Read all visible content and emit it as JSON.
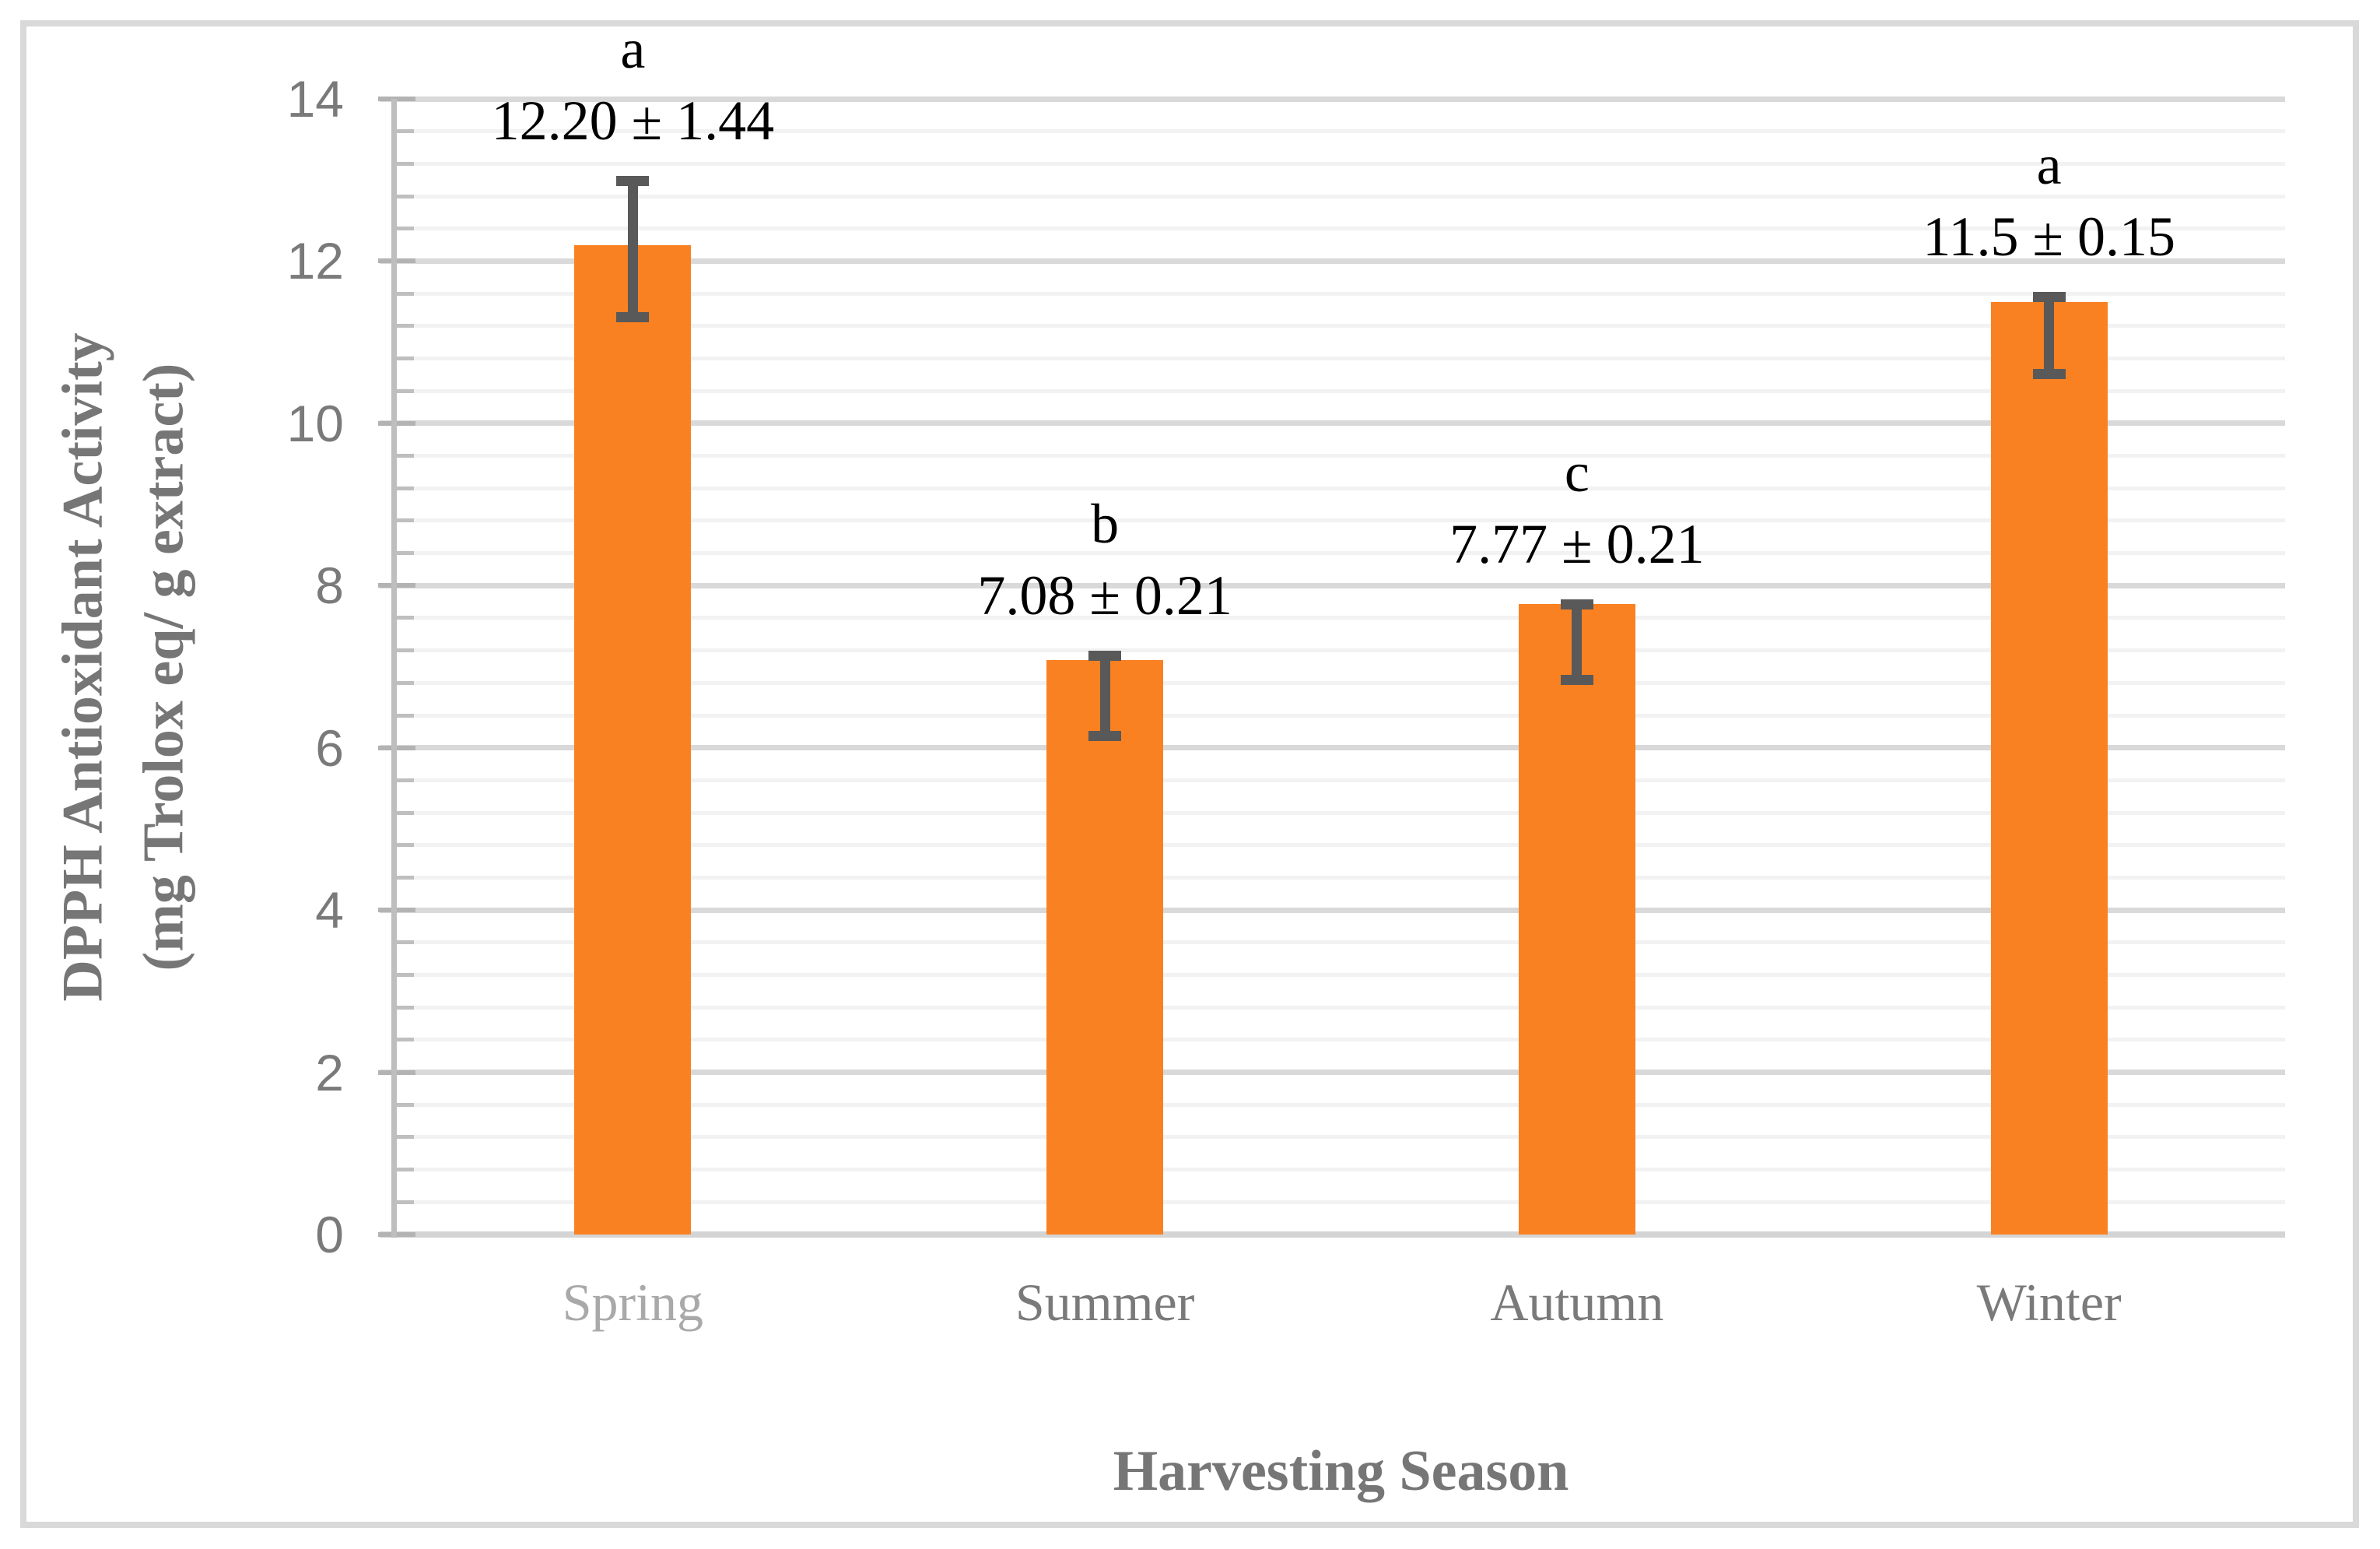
{
  "chart_data": {
    "type": "bar",
    "categories": [
      "Spring",
      "Summer",
      "Autumn",
      "Winter"
    ],
    "values": [
      12.2,
      7.08,
      7.77,
      11.5
    ],
    "value_labels": [
      "12.20 ± 1.44",
      "7.08 ± 0.21",
      "7.77 ± 0.21",
      "11.5 ± 0.15"
    ],
    "sig_letters": [
      "a",
      "b",
      "c",
      "a"
    ],
    "errors": [
      1.44,
      0.21,
      0.21,
      0.15
    ],
    "error_bars_drawn": [
      {
        "top": 13.05,
        "bottom": 11.25
      },
      {
        "top": 7.2,
        "bottom": 6.08
      },
      {
        "top": 7.83,
        "bottom": 6.77
      },
      {
        "top": 11.62,
        "bottom": 10.55
      }
    ],
    "xlabel": "Harvesting Season",
    "ylabel_line1": "DPPH Antioxidant Activity",
    "ylabel_line2": "(mg Trolox eq/ g extract)",
    "ylim": [
      0,
      14
    ],
    "yticks": [
      0,
      2,
      4,
      6,
      8,
      10,
      12,
      14
    ],
    "minor_gridline_step": 0.4,
    "grid": "horizontal major and minor",
    "legend": "none",
    "colors": {
      "bar": "#FA8122",
      "error_bar": "#595959",
      "gridline_major": "#D9D9D9",
      "gridline_minor": "#F2F2F2",
      "axis_line": "#BEBEBE",
      "tick_label": "#7A7A7A",
      "axis_title": "#767676",
      "category_label_spring": "#A9A9A9",
      "category_label_default": "#7A7A7A",
      "data_label": "#000000",
      "figure_border": "#D9D9D9"
    }
  }
}
